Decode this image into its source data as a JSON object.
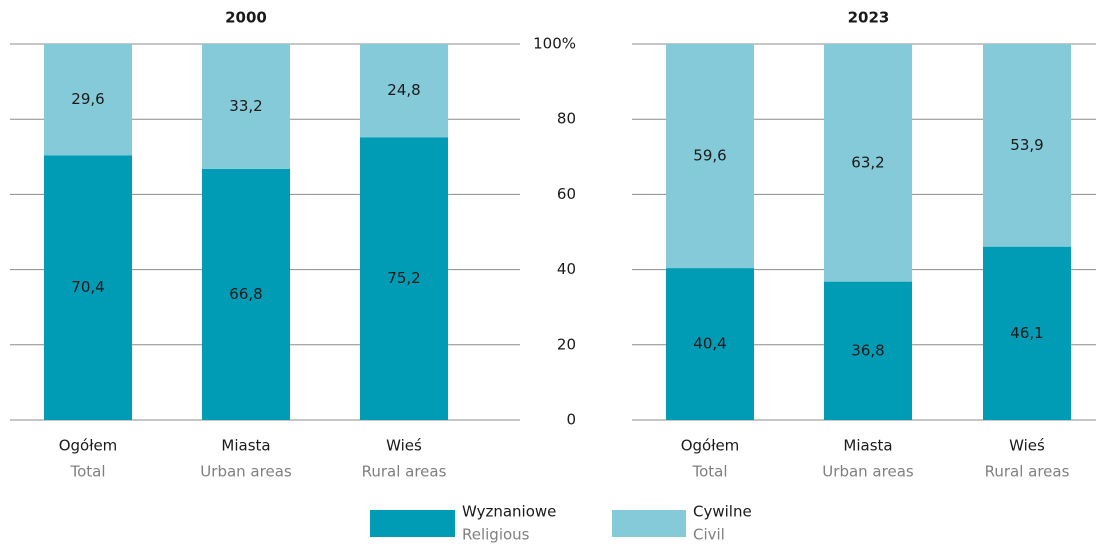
{
  "chart_data": [
    {
      "type": "stacked_bar",
      "title": "2000",
      "categories": [
        "Ogółem",
        "Miasta",
        "Wieś"
      ],
      "category_subtitles": [
        "Total",
        "Urban areas",
        "Rural areas"
      ],
      "series": [
        {
          "name": "Wyznaniowe",
          "name_en": "Religious",
          "color": "#009bb4",
          "values": [
            70.4,
            66.8,
            75.2
          ],
          "value_labels": [
            "70,4",
            "66,8",
            "75,2"
          ]
        },
        {
          "name": "Cywilne",
          "name_en": "Civil",
          "color": "#84cad8",
          "values": [
            29.6,
            33.2,
            24.8
          ],
          "value_labels": [
            "29,6",
            "33,2",
            "24,8"
          ]
        }
      ],
      "ylim": [
        0,
        100
      ],
      "yticks": [
        0,
        20,
        40,
        60,
        80,
        {
          "value": 100,
          "label": "100%"
        }
      ],
      "grid": true
    },
    {
      "type": "stacked_bar",
      "title": "2023",
      "categories": [
        "Ogółem",
        "Miasta",
        "Wieś"
      ],
      "category_subtitles": [
        "Total",
        "Urban areas",
        "Rural areas"
      ],
      "series": [
        {
          "name": "Wyznaniowe",
          "name_en": "Religious",
          "color": "#009bb4",
          "values": [
            40.4,
            36.8,
            46.1
          ],
          "value_labels": [
            "40,4",
            "36,8",
            "46,1"
          ]
        },
        {
          "name": "Cywilne",
          "name_en": "Civil",
          "color": "#84cad8",
          "values": [
            59.6,
            63.2,
            53.9
          ],
          "value_labels": [
            "59,6",
            "63,2",
            "53,9"
          ]
        }
      ],
      "ylim": [
        0,
        100
      ],
      "yticks": [
        0,
        20,
        40,
        60,
        80,
        {
          "value": 100,
          "label": "100%"
        }
      ],
      "grid": true
    }
  ]
}
